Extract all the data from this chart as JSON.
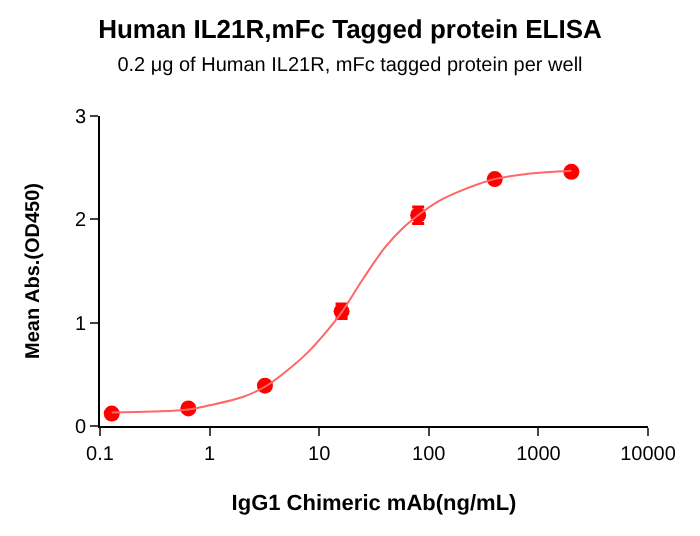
{
  "chart_data": {
    "type": "scatter",
    "title": "Human IL21R,mFc Tagged protein ELISA",
    "subtitle": "0.2 μg of Human IL21R, mFc tagged protein per well",
    "xlabel": "IgG1 Chimeric mAb(ng/mL)",
    "ylabel": "Mean Abs.(OD450)",
    "log": "x",
    "grid": false,
    "legend": false,
    "marker": "circle",
    "xlim": [
      0.1,
      10000
    ],
    "xticks": [
      0.1,
      1,
      10,
      100,
      1000,
      10000
    ],
    "ylim": [
      0,
      3
    ],
    "yticks": [
      0,
      1,
      2,
      3
    ],
    "series": [
      {
        "color": "#ff0000",
        "x": [
          0.128,
          0.64,
          3.2,
          16,
          80,
          400,
          2000
        ],
        "values": [
          0.12,
          0.17,
          0.39,
          1.11,
          2.04,
          2.39,
          2.46
        ],
        "errors": [
          null,
          null,
          null,
          0.07,
          0.08,
          null,
          null
        ]
      },
      {
        "type": "line",
        "color": "#ff6666",
        "marker": "none",
        "line_style": "solid",
        "x": [
          0.128,
          0.3,
          0.64,
          1,
          2,
          3.2,
          5,
          8,
          12,
          16,
          25,
          40,
          60,
          80,
          120,
          200,
          400,
          800,
          2000
        ],
        "values": [
          0.13,
          0.14,
          0.16,
          0.2,
          0.28,
          0.38,
          0.53,
          0.72,
          0.93,
          1.1,
          1.42,
          1.73,
          1.93,
          2.04,
          2.17,
          2.28,
          2.39,
          2.44,
          2.47
        ]
      }
    ]
  }
}
